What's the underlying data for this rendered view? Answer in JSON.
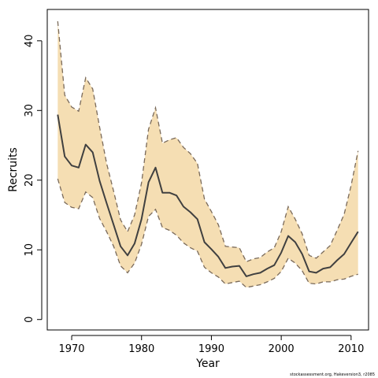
{
  "chart_data": {
    "type": "area",
    "title": "",
    "xlabel": "Year",
    "ylabel": "Recruits",
    "credit": "stockassessment.org, Hakeversion3, r2085",
    "xlim": [
      1966.5,
      2012.5
    ],
    "ylim": [
      -1.5,
      44.5
    ],
    "xticks": [
      1970,
      1980,
      1990,
      2000,
      2010
    ],
    "yticks": [
      0,
      10,
      20,
      30,
      40
    ],
    "grid": false,
    "legend": "none",
    "colors": {
      "band": "#f5deb3",
      "line": "#404040",
      "bound": "#7a6a5a",
      "axis": "#000000"
    },
    "x": [
      1968,
      1969,
      1970,
      1971,
      1972,
      1973,
      1974,
      1975,
      1976,
      1977,
      1978,
      1979,
      1980,
      1981,
      1982,
      1983,
      1984,
      1985,
      1986,
      1987,
      1988,
      1989,
      1990,
      1991,
      1992,
      1993,
      1994,
      1995,
      1996,
      1997,
      1998,
      1999,
      2000,
      2001,
      2002,
      2003,
      2004,
      2005,
      2006,
      2007,
      2008,
      2009,
      2010,
      2011
    ],
    "series": [
      {
        "role": "estimate",
        "values": [
          29.4,
          23.4,
          22.1,
          21.8,
          25.1,
          24.0,
          19.9,
          16.7,
          13.6,
          10.5,
          9.2,
          10.9,
          14.4,
          19.7,
          21.8,
          18.2,
          18.2,
          17.8,
          16.2,
          15.4,
          14.4,
          11.1,
          10.1,
          9.0,
          7.4,
          7.6,
          7.7,
          6.2,
          6.5,
          6.7,
          7.3,
          7.8,
          9.6,
          12.0,
          11.1,
          9.4,
          6.9,
          6.7,
          7.3,
          7.5,
          8.5,
          9.4,
          11.0,
          12.6
        ]
      },
      {
        "role": "lower",
        "values": [
          20.2,
          16.8,
          16.1,
          15.9,
          18.3,
          17.5,
          14.5,
          12.6,
          10.5,
          7.7,
          6.7,
          8.1,
          10.8,
          14.8,
          15.8,
          13.2,
          12.8,
          12.1,
          11.0,
          10.3,
          9.8,
          7.5,
          6.7,
          6.1,
          5.1,
          5.3,
          5.5,
          4.6,
          4.8,
          5.0,
          5.4,
          5.9,
          6.9,
          8.8,
          8.1,
          7.0,
          5.2,
          5.1,
          5.4,
          5.4,
          5.7,
          5.8,
          6.2,
          6.5
        ]
      },
      {
        "role": "upper",
        "values": [
          42.8,
          32.2,
          30.5,
          29.9,
          34.7,
          33.1,
          27.6,
          22.4,
          18.4,
          14.3,
          12.6,
          15.0,
          19.6,
          27.3,
          30.4,
          25.3,
          25.8,
          26.1,
          24.7,
          23.8,
          22.4,
          17.3,
          15.5,
          13.6,
          10.5,
          10.4,
          10.3,
          8.3,
          8.7,
          8.9,
          9.7,
          10.3,
          12.6,
          16.2,
          14.4,
          12.3,
          9.2,
          8.8,
          9.7,
          10.6,
          12.8,
          15.1,
          19.2,
          24.2
        ]
      }
    ]
  }
}
